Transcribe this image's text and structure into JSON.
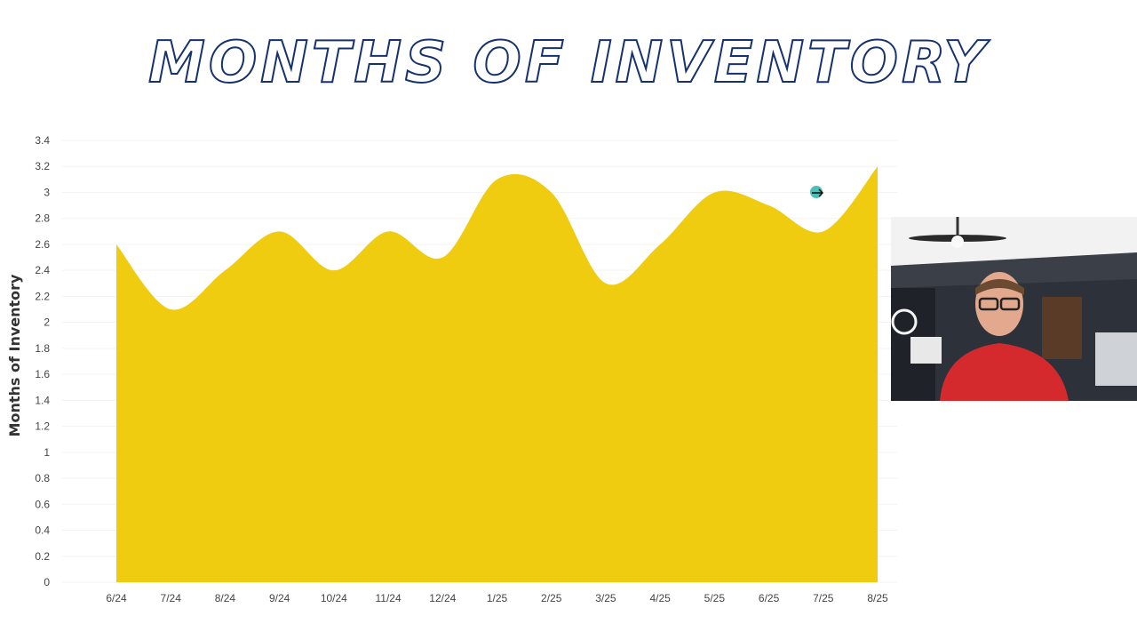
{
  "title": "MONTHS OF INVENTORY",
  "chart_data": {
    "type": "area",
    "title": "MONTHS OF INVENTORY",
    "xlabel": "",
    "ylabel": "Months of Inventory",
    "categories": [
      "6/24",
      "7/24",
      "8/24",
      "9/24",
      "10/24",
      "11/24",
      "12/24",
      "1/25",
      "2/25",
      "3/25",
      "4/25",
      "5/25",
      "6/25",
      "7/25",
      "8/25"
    ],
    "values": [
      2.6,
      2.1,
      2.4,
      2.7,
      2.4,
      2.7,
      2.5,
      3.1,
      3.0,
      2.3,
      2.6,
      3.0,
      2.9,
      2.7,
      3.2
    ],
    "ylim": [
      0,
      3.4
    ],
    "yticks": [
      "0",
      "0.2",
      "0.4",
      "0.6",
      "0.8",
      "1",
      "1.2",
      "1.4",
      "1.6",
      "1.8",
      "2",
      "2.2",
      "2.4",
      "2.6",
      "2.8",
      "3",
      "3.2",
      "3.4"
    ],
    "fill_color": "#f0cc10",
    "grid": true,
    "legend": "none"
  },
  "cursor": {
    "icon": "arrow-cursor-icon",
    "color": "#2bb5a8"
  },
  "webcam": {
    "icon": "presenter-video-icon",
    "shirt_color": "#d42a2e"
  }
}
